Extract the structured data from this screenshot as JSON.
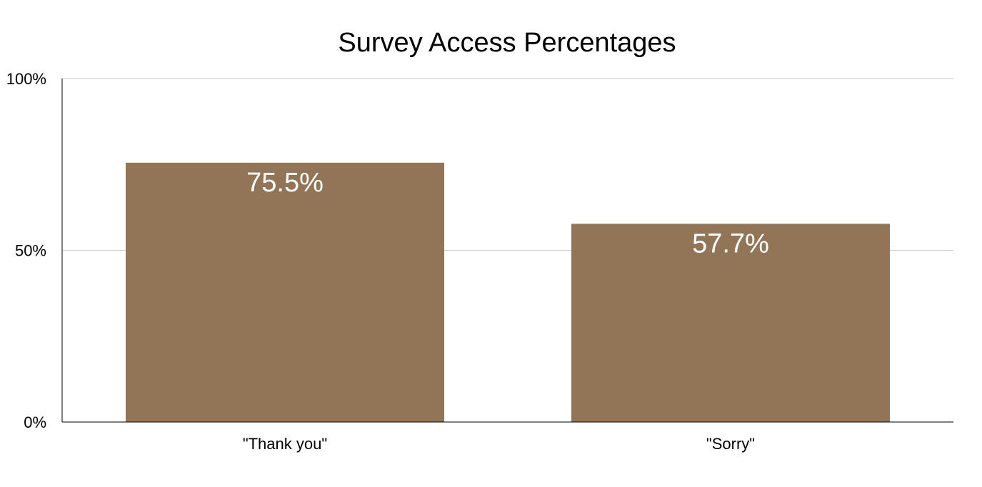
{
  "chart_data": {
    "type": "bar",
    "title": "Survey Access Percentages",
    "xlabel": "",
    "ylabel": "",
    "categories": [
      "\"Thank you\"",
      "\"Sorry\""
    ],
    "values": [
      75.5,
      57.7
    ],
    "data_labels": [
      "75.5%",
      "57.7%"
    ],
    "ylim": [
      0,
      100
    ],
    "yticks": [
      0,
      50,
      100
    ],
    "ytick_labels": [
      "0%",
      "50%",
      "100%"
    ],
    "grid": true,
    "legend": "none",
    "colors": {
      "bar": "#927456",
      "grid": "#c8c8c8",
      "axis": "#000000",
      "data_label": "#ffffff"
    }
  }
}
